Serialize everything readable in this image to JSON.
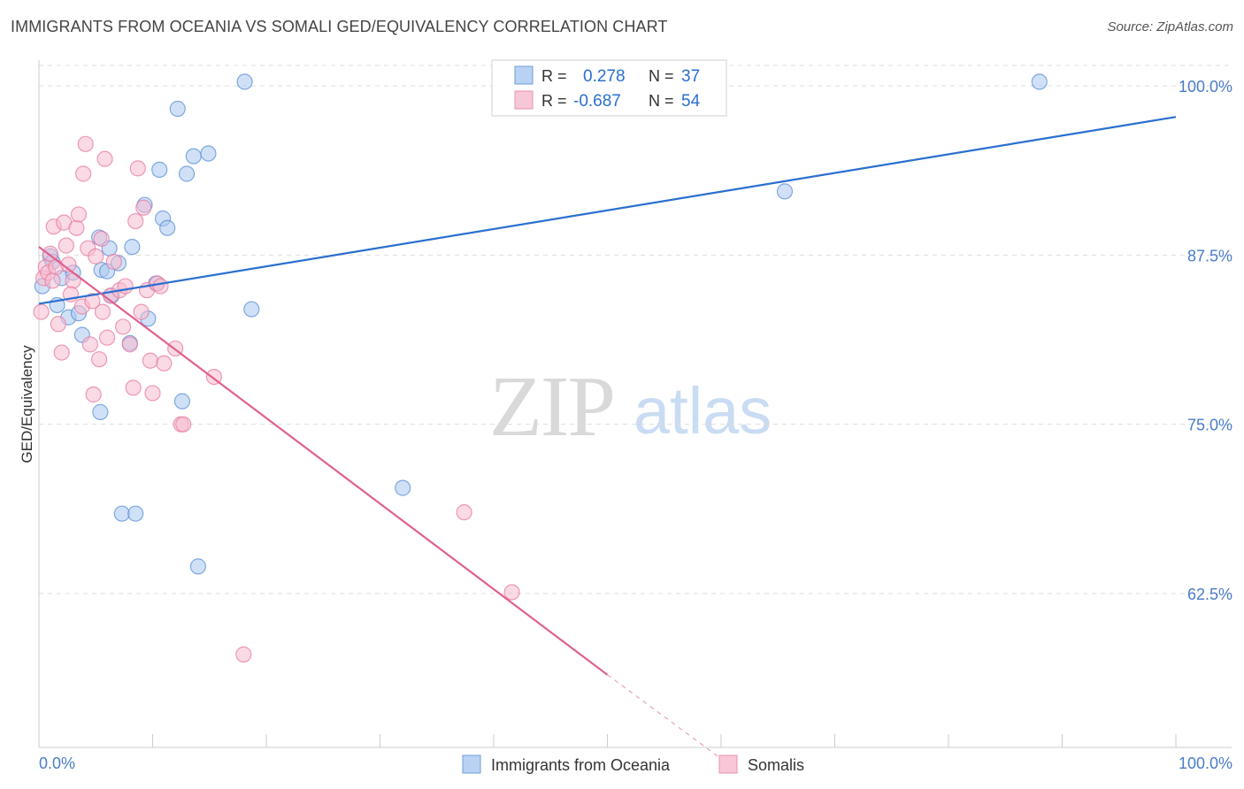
{
  "header": {
    "title": "IMMIGRANTS FROM OCEANIA VS SOMALI GED/EQUIVALENCY CORRELATION CHART",
    "source": "Source: ZipAtlas.com"
  },
  "watermark": {
    "zip": "ZIP",
    "atlas": "atlas"
  },
  "colors": {
    "blue": "#5b8fd6",
    "blue_fill": "#a9c8f0",
    "blue_line": "#2a6fcf",
    "pink": "#e87aa0",
    "pink_fill": "#f6bcd0",
    "pink_line": "#e0608e",
    "axis_label": "#4a7cc9",
    "grid": "#dddddd"
  },
  "legend_top": {
    "rows": [
      {
        "r_label": "R =",
        "r_value": "0.278",
        "n_label": "N =",
        "n_value": "37"
      },
      {
        "r_label": "R =",
        "r_value": "-0.687",
        "n_label": "N =",
        "n_value": "54"
      }
    ]
  },
  "legend_bottom": {
    "items": [
      {
        "label": "Immigrants from Oceania"
      },
      {
        "label": "Somalis"
      }
    ]
  },
  "chart_data": {
    "type": "scatter",
    "title": "IMMIGRANTS FROM OCEANIA VS SOMALI GED/EQUIVALENCY CORRELATION CHART",
    "xlabel": "",
    "ylabel": "GED/Equivalency",
    "xlim": [
      0,
      100
    ],
    "ylim": [
      50.5,
      101.5
    ],
    "x_tick_labels": [
      {
        "value": 0,
        "label": "0.0%"
      },
      {
        "value": 100,
        "label": "100.0%"
      }
    ],
    "y_tick_labels": [
      {
        "value": 62.5,
        "label": "62.5%"
      },
      {
        "value": 75,
        "label": "75.0%"
      },
      {
        "value": 87.5,
        "label": "87.5%"
      },
      {
        "value": 100,
        "label": "100.0%"
      }
    ],
    "grid": true,
    "series": [
      {
        "name": "Immigrants from Oceania",
        "r": 0.278,
        "n": 37,
        "points": [
          [
            0.3,
            85.2
          ],
          [
            1.0,
            87.4
          ],
          [
            1.2,
            87.0
          ],
          [
            1.6,
            83.8
          ],
          [
            2.0,
            85.8
          ],
          [
            2.6,
            82.9
          ],
          [
            3.0,
            86.2
          ],
          [
            3.5,
            83.2
          ],
          [
            3.8,
            81.6
          ],
          [
            5.5,
            86.4
          ],
          [
            5.3,
            88.8
          ],
          [
            6.0,
            86.3
          ],
          [
            6.2,
            88.0
          ],
          [
            7.0,
            86.9
          ],
          [
            5.4,
            75.9
          ],
          [
            7.3,
            68.4
          ],
          [
            8.2,
            88.1
          ],
          [
            8.5,
            68.4
          ],
          [
            9.3,
            91.2
          ],
          [
            9.6,
            82.8
          ],
          [
            10.3,
            85.4
          ],
          [
            10.6,
            93.8
          ],
          [
            10.9,
            90.2
          ],
          [
            11.3,
            89.5
          ],
          [
            12.2,
            98.3
          ],
          [
            12.6,
            76.7
          ],
          [
            13.0,
            93.5
          ],
          [
            13.6,
            94.8
          ],
          [
            14.0,
            64.5
          ],
          [
            14.9,
            95.0
          ],
          [
            18.1,
            100.3
          ],
          [
            18.7,
            83.5
          ],
          [
            8.0,
            81.0
          ],
          [
            6.4,
            84.5
          ],
          [
            32.0,
            70.3
          ],
          [
            65.6,
            92.2
          ],
          [
            88.0,
            100.3
          ]
        ],
        "trend": {
          "x": [
            0,
            100
          ],
          "y": [
            83.9,
            97.7
          ]
        }
      },
      {
        "name": "Somalis",
        "r": -0.687,
        "n": 54,
        "points": [
          [
            0.2,
            83.3
          ],
          [
            0.4,
            85.8
          ],
          [
            0.6,
            86.6
          ],
          [
            0.8,
            86.2
          ],
          [
            1.0,
            87.6
          ],
          [
            1.3,
            89.6
          ],
          [
            1.5,
            86.6
          ],
          [
            1.7,
            82.4
          ],
          [
            2.0,
            80.3
          ],
          [
            2.2,
            89.9
          ],
          [
            2.4,
            88.2
          ],
          [
            2.6,
            86.8
          ],
          [
            3.0,
            85.6
          ],
          [
            3.3,
            89.5
          ],
          [
            3.5,
            90.5
          ],
          [
            3.8,
            83.7
          ],
          [
            3.9,
            93.5
          ],
          [
            4.1,
            95.7
          ],
          [
            4.3,
            88.0
          ],
          [
            4.5,
            80.9
          ],
          [
            4.7,
            84.1
          ],
          [
            4.8,
            77.2
          ],
          [
            5.0,
            87.4
          ],
          [
            5.3,
            79.8
          ],
          [
            5.5,
            88.7
          ],
          [
            5.6,
            83.3
          ],
          [
            5.8,
            94.6
          ],
          [
            6.0,
            81.4
          ],
          [
            6.3,
            84.5
          ],
          [
            6.6,
            87.0
          ],
          [
            7.1,
            84.9
          ],
          [
            7.4,
            82.2
          ],
          [
            7.6,
            85.2
          ],
          [
            8.0,
            80.9
          ],
          [
            8.3,
            77.7
          ],
          [
            8.5,
            90.0
          ],
          [
            8.7,
            93.9
          ],
          [
            9.0,
            83.3
          ],
          [
            9.2,
            91.0
          ],
          [
            9.5,
            84.9
          ],
          [
            9.8,
            79.7
          ],
          [
            10.0,
            77.3
          ],
          [
            10.4,
            85.4
          ],
          [
            10.7,
            85.2
          ],
          [
            11.0,
            79.5
          ],
          [
            12.0,
            80.6
          ],
          [
            12.5,
            75.0
          ],
          [
            12.7,
            75.0
          ],
          [
            15.4,
            78.5
          ],
          [
            18.0,
            58.0
          ],
          [
            37.4,
            68.5
          ],
          [
            41.6,
            62.6
          ],
          [
            1.2,
            85.6
          ],
          [
            2.8,
            84.6
          ]
        ],
        "trend": {
          "x": [
            0,
            50
          ],
          "y": [
            88.1,
            56.5
          ]
        },
        "trend_extension": {
          "x": [
            50,
            60
          ],
          "y": [
            56.5,
            50.3
          ]
        }
      }
    ]
  }
}
